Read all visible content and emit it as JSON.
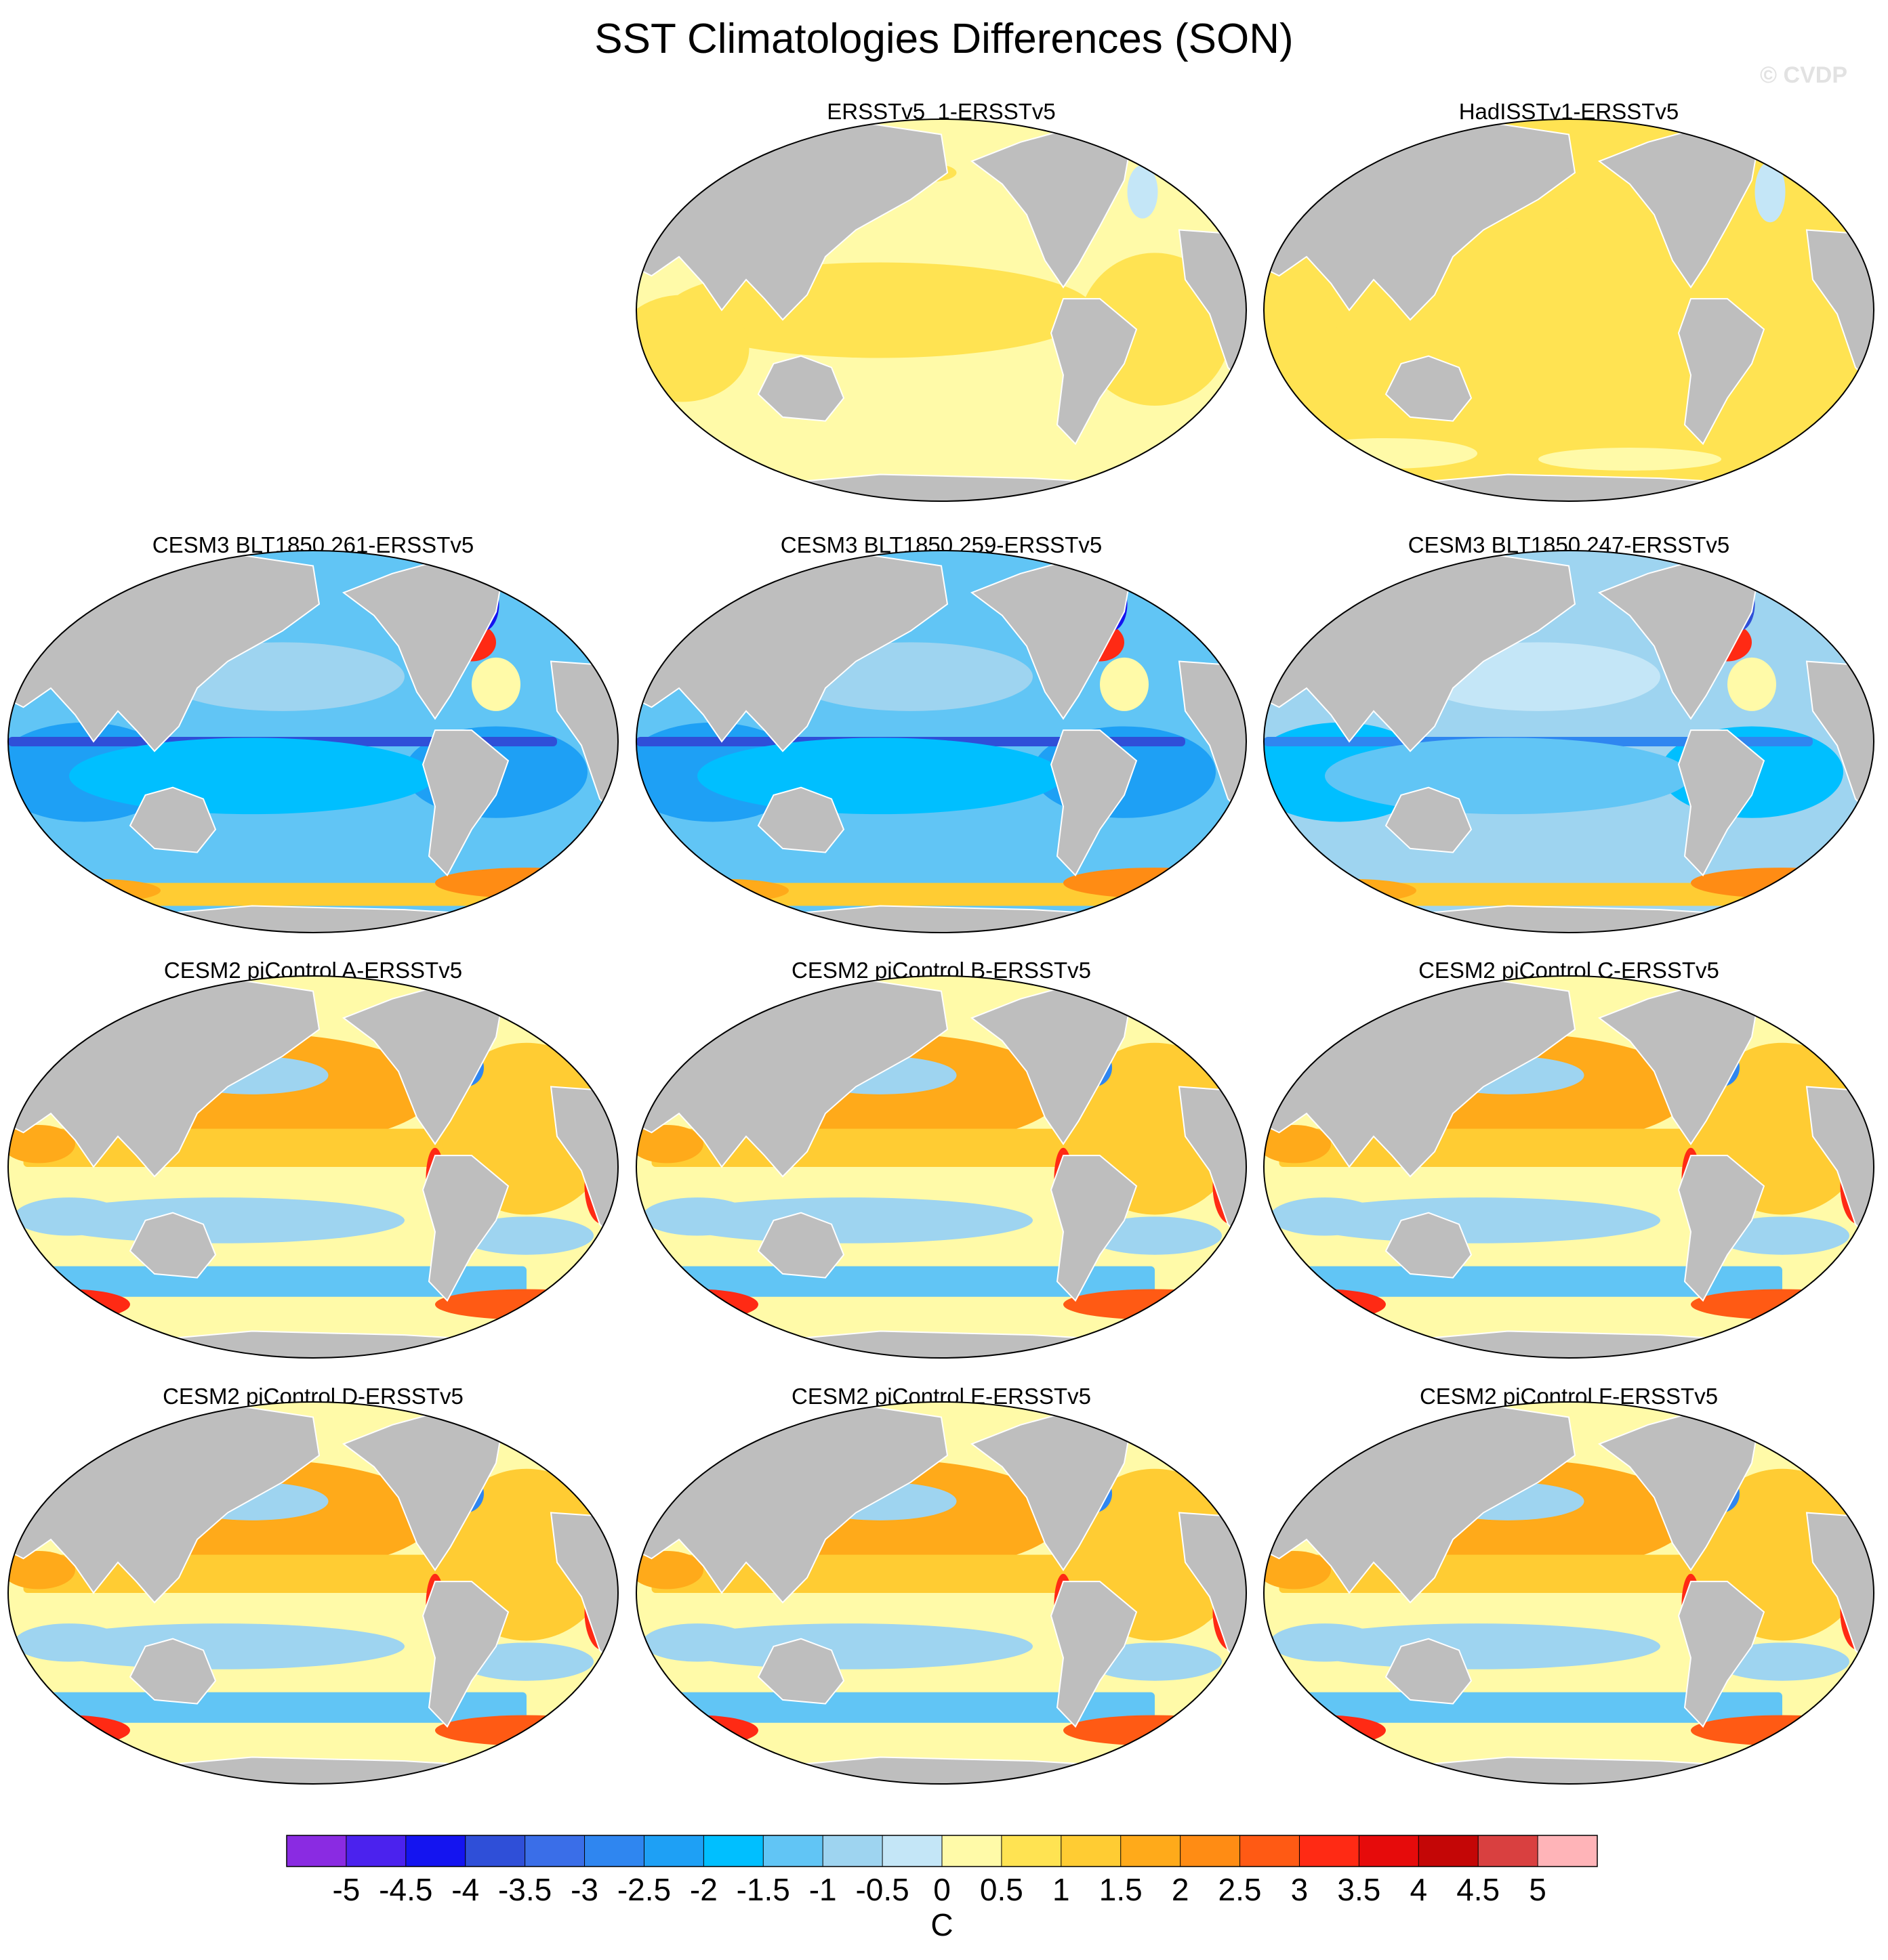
{
  "title": "SST Climatologies Differences (SON)",
  "watermark": "© CVDP",
  "chart_data": {
    "type": "heatmap",
    "title": "SST Climatologies Differences (SON)",
    "projection": "Robinson (Pacific-centered world map)",
    "land_color": "#bebebe",
    "colorbar": {
      "units": "C",
      "levels": [
        -5,
        -4.5,
        -4,
        -3.5,
        -3,
        -2.5,
        -2,
        -1.5,
        -1,
        -0.5,
        0,
        0.5,
        1,
        1.5,
        2,
        2.5,
        3,
        3.5,
        4,
        4.5,
        5
      ],
      "tick_labels": [
        "-5",
        "-4.5",
        "-4",
        "-3.5",
        "-3",
        "-2.5",
        "-2",
        "-1.5",
        "-1",
        "-0.5",
        "0",
        "0.5",
        "1",
        "1.5",
        "2",
        "2.5",
        "3",
        "3.5",
        "4",
        "4.5",
        "5"
      ],
      "colors": [
        "#8a2be2",
        "#4b22ee",
        "#1414f0",
        "#2f4fd8",
        "#3a6ee8",
        "#2f86f0",
        "#1ea0f5",
        "#00bfff",
        "#61c5f5",
        "#9ed4f0",
        "#c4e6f7",
        "#fffaa8",
        "#ffe352",
        "#ffcc33",
        "#ffaa1a",
        "#ff8c14",
        "#ff5a14",
        "#ff2a14",
        "#e60b0b",
        "#c40606",
        "#d94040",
        "#ffb4b8"
      ]
    },
    "panels": [
      {
        "title": "ERSSTv5_1-ERSSTv5",
        "pattern": "uniform-warm",
        "summary": "near-zero to +0.5 C nearly everywhere; small 0 to -0.5 C spots in North Atlantic"
      },
      {
        "title": "HadISSTv1-ERSSTv5",
        "pattern": "uniform-warm-strong",
        "summary": "+0.5 to +1 C broadly; small 0 to -0.5 C spots in North Atlantic"
      },
      {
        "title": "CESM3 BLT1850 261-ERSSTv5",
        "pattern": "cold-bias",
        "summary": "-1.5 to -3 C cold bias across tropics; -3.5 to -4 C along equatorial Pacific; +2 to +3.5 C at Kuroshio and Gulf Stream; +1.5 C Southern Ocean"
      },
      {
        "title": "CESM3 BLT1850 259-ERSSTv5",
        "pattern": "cold-bias",
        "summary": "-1.5 to -3 C cold bias across tropics; -4 C along equatorial Pacific; +2 to +3.5 C at Kuroshio and Gulf Stream"
      },
      {
        "title": "CESM3 BLT1850 247-ERSSTv5",
        "pattern": "cold-bias-weak",
        "summary": "-1 to -2.5 C cold bias across tropics; +2 to +3 C at Kuroshio and Gulf Stream"
      },
      {
        "title": "CESM2 piControl A-ERSSTv5",
        "pattern": "warm-bias",
        "summary": "+0.5 to +2 C in North Pacific and Atlantic; -0.5 to -1.5 C southern subtropics; +3 to +4 C Southern Ocean near 45S; -2 to -3 C Gulf Stream"
      },
      {
        "title": "CESM2 piControl B-ERSSTv5",
        "pattern": "warm-bias",
        "summary": "+0.5 to +2 C in North Pacific and Atlantic; -0.5 to -1.5 C southern subtropics; +3 to +4 C Southern Ocean; -2 to -3 C Gulf Stream"
      },
      {
        "title": "CESM2 piControl C-ERSSTv5",
        "pattern": "warm-bias",
        "summary": "+0.5 to +2 C in North Pacific and Atlantic; -0.5 to -1.5 C southern subtropics; +3 to +4 C Southern Ocean; -2 to -3 C Gulf Stream"
      },
      {
        "title": "CESM2 piControl D-ERSSTv5",
        "pattern": "warm-bias",
        "summary": "+0.5 to +2 C in North Pacific and Atlantic; -0.5 to -1.5 C southern subtropics; +3 to +4 C Southern Ocean; -2 to -3 C Gulf Stream"
      },
      {
        "title": "CESM2 piControl E-ERSSTv5",
        "pattern": "warm-bias",
        "summary": "+0.5 to +2 C in North Pacific and Atlantic; -0.5 to -1.5 C southern subtropics; +3 to +4 C Southern Ocean; -2 to -3 C Gulf Stream"
      },
      {
        "title": "CESM2 piControl F-ERSSTv5",
        "pattern": "warm-bias",
        "summary": "+0.5 to +2 C in North Pacific and Atlantic; -0.5 to -1.5 C southern subtropics; +3 to +4 C Southern Ocean; -2 to -3 C Gulf Stream"
      }
    ]
  }
}
